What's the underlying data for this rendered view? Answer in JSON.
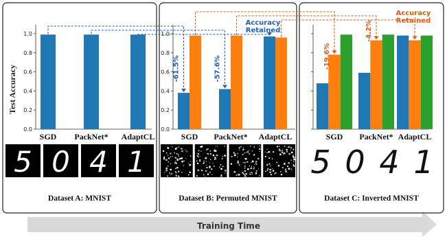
{
  "y_axis_label": "Test Accuracy",
  "x_axis_label": "Training Time",
  "accuracy_retained_label": [
    "Accuracy",
    "Retained"
  ],
  "colors": {
    "task_a": "#1f77b4",
    "task_b": "#ff7f0e",
    "task_c": "#2ca02c",
    "retained_blue": "#1f5fb4",
    "retained_orange": "#e05a0e",
    "arrow_gray": "#d9d9d9"
  },
  "chart_data": [
    {
      "type": "bar",
      "panel": "A",
      "caption": "Dataset A: MNIST",
      "digits": [
        "5",
        "0",
        "4",
        "1"
      ],
      "digit_style": "mnist",
      "categories": [
        "SGD",
        "PackNet*",
        "AdaptCL"
      ],
      "series": [
        {
          "values": [
            0.99,
            0.99,
            0.99
          ]
        }
      ],
      "ylim": [
        0,
        1.05
      ],
      "yticks": [
        "0.0",
        "0.2",
        "0.4",
        "0.6",
        "0.8",
        "1.0"
      ]
    },
    {
      "type": "bar",
      "panel": "B",
      "caption": "Dataset B: Permuted MNIST",
      "digits": [],
      "digit_style": "permuted",
      "categories": [
        "SGD",
        "PackNet*",
        "AdaptCL"
      ],
      "series": [
        {
          "values": [
            0.38,
            0.42,
            0.97
          ]
        },
        {
          "values": [
            0.98,
            0.98,
            0.96
          ]
        }
      ],
      "annotations": [
        "-61.5%",
        "-57.6%"
      ],
      "ylim": [
        0,
        1.05
      ],
      "yticks": [
        "0.0",
        "0.2",
        "0.4",
        "0.6",
        "0.8",
        "1.0"
      ]
    },
    {
      "type": "bar",
      "panel": "C",
      "caption": "Dataset C: Inverted MNIST",
      "digits": [
        "5",
        "0",
        "4",
        "1"
      ],
      "digit_style": "inverted",
      "categories": [
        "SGD",
        "PackNet*",
        "AdaptCL"
      ],
      "series": [
        {
          "values": [
            0.48,
            0.59,
            0.98
          ]
        },
        {
          "values": [
            0.78,
            0.93,
            0.93
          ]
        },
        {
          "values": [
            0.99,
            0.99,
            0.98
          ]
        }
      ],
      "annotations": [
        "-19.6%",
        "-4.2%"
      ],
      "ylim": [
        0,
        1.05
      ],
      "yticks": []
    }
  ]
}
